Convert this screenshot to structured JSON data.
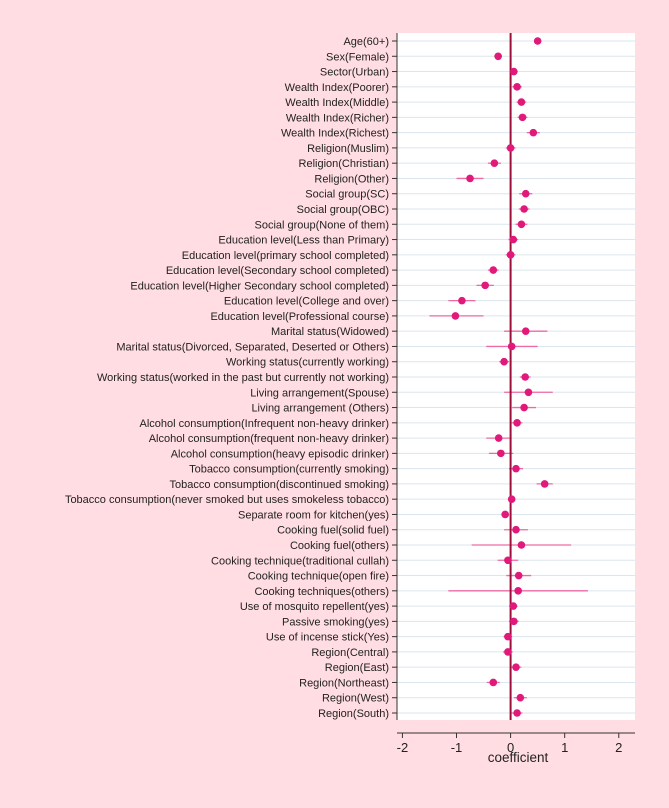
{
  "chart_data": {
    "type": "forest",
    "xlabel": "coefficient",
    "xlim": [
      -2.1,
      2.3
    ],
    "xticks": [
      -2,
      -1,
      0,
      1,
      2
    ],
    "xtick_labels": [
      "-2",
      "-1",
      "0",
      "1",
      "2"
    ],
    "reference_line": 0,
    "grid": "horizontal",
    "colors": {
      "page_background": "#ffdde2",
      "plot_background": "#ffffff",
      "gridline": "#dbe6ee",
      "point": "#e0197a",
      "ci_line": "#ee6aa5",
      "reference_line": "#9b0f3a"
    },
    "rows": [
      {
        "label": "Age(60+)",
        "coef": 0.5,
        "lo": 0.44,
        "hi": 0.57
      },
      {
        "label": "Sex(Female)",
        "coef": -0.23,
        "lo": -0.3,
        "hi": -0.16
      },
      {
        "label": "Sector(Urban)",
        "coef": 0.06,
        "lo": -0.01,
        "hi": 0.13
      },
      {
        "label": "Wealth Index(Poorer)",
        "coef": 0.12,
        "lo": 0.03,
        "hi": 0.21
      },
      {
        "label": "Wealth Index(Middle)",
        "coef": 0.2,
        "lo": 0.11,
        "hi": 0.29
      },
      {
        "label": "Wealth Index(Richer)",
        "coef": 0.22,
        "lo": 0.13,
        "hi": 0.31
      },
      {
        "label": "Wealth Index(Richest)",
        "coef": 0.42,
        "lo": 0.3,
        "hi": 0.54
      },
      {
        "label": "Religion(Muslim)",
        "coef": 0.0,
        "lo": -0.09,
        "hi": 0.09
      },
      {
        "label": "Religion(Christian)",
        "coef": -0.3,
        "lo": -0.42,
        "hi": -0.18
      },
      {
        "label": "Religion(Other)",
        "coef": -0.75,
        "lo": -1.0,
        "hi": -0.5
      },
      {
        "label": "Social group(SC)",
        "coef": 0.28,
        "lo": 0.16,
        "hi": 0.4
      },
      {
        "label": "Social group(OBC)",
        "coef": 0.25,
        "lo": 0.15,
        "hi": 0.35
      },
      {
        "label": "Social group(None of them)",
        "coef": 0.2,
        "lo": 0.09,
        "hi": 0.31
      },
      {
        "label": "Education level(Less than Primary)",
        "coef": 0.05,
        "lo": -0.04,
        "hi": 0.14
      },
      {
        "label": "Education level(primary school completed)",
        "coef": 0.0,
        "lo": -0.09,
        "hi": 0.09
      },
      {
        "label": "Education level(Secondary school completed)",
        "coef": -0.32,
        "lo": -0.42,
        "hi": -0.22
      },
      {
        "label": "Education level(Higher Secondary school completed)",
        "coef": -0.47,
        "lo": -0.63,
        "hi": -0.31
      },
      {
        "label": "Education level(College and over)",
        "coef": -0.9,
        "lo": -1.15,
        "hi": -0.65
      },
      {
        "label": "Education level(Professional course)",
        "coef": -1.02,
        "lo": -1.5,
        "hi": -0.5
      },
      {
        "label": "Marital status(Widowed)",
        "coef": 0.28,
        "lo": -0.12,
        "hi": 0.68
      },
      {
        "label": "Marital status(Divorced, Separated, Deserted or Others)",
        "coef": 0.02,
        "lo": -0.45,
        "hi": 0.5
      },
      {
        "label": "Working status(currently working)",
        "coef": -0.12,
        "lo": -0.21,
        "hi": -0.03
      },
      {
        "label": "Working status(worked in the past but currently not working)",
        "coef": 0.27,
        "lo": 0.17,
        "hi": 0.37
      },
      {
        "label": "Living arrangement(Spouse)",
        "coef": 0.33,
        "lo": -0.12,
        "hi": 0.78
      },
      {
        "label": "Living arrangement (Others)",
        "coef": 0.25,
        "lo": 0.03,
        "hi": 0.47
      },
      {
        "label": "Alcohol consumption(Infrequent non-heavy drinker)",
        "coef": 0.12,
        "lo": 0.02,
        "hi": 0.22
      },
      {
        "label": "Alcohol consumption(frequent non-heavy drinker)",
        "coef": -0.22,
        "lo": -0.45,
        "hi": 0.01
      },
      {
        "label": "Alcohol consumption(heavy episodic drinker)",
        "coef": -0.18,
        "lo": -0.4,
        "hi": 0.05
      },
      {
        "label": "Tobacco consumption(currently smoking)",
        "coef": 0.1,
        "lo": -0.03,
        "hi": 0.23
      },
      {
        "label": "Tobacco consumption(discontinued smoking)",
        "coef": 0.63,
        "lo": 0.48,
        "hi": 0.78
      },
      {
        "label": "Tobacco consumption(never smoked but uses smokeless tobacco)",
        "coef": 0.02,
        "lo": -0.05,
        "hi": 0.09
      },
      {
        "label": "Separate room for kitchen(yes)",
        "coef": -0.1,
        "lo": -0.17,
        "hi": -0.03
      },
      {
        "label": "Cooking fuel(solid fuel)",
        "coef": 0.1,
        "lo": -0.12,
        "hi": 0.32
      },
      {
        "label": "Cooking fuel(others)",
        "coef": 0.2,
        "lo": -0.72,
        "hi": 1.12
      },
      {
        "label": "Cooking technique(traditional cullah)",
        "coef": -0.05,
        "lo": -0.24,
        "hi": 0.14
      },
      {
        "label": "Cooking technique(open fire)",
        "coef": 0.15,
        "lo": -0.08,
        "hi": 0.38
      },
      {
        "label": "Cooking techniques(others)",
        "coef": 0.14,
        "lo": -1.15,
        "hi": 1.43
      },
      {
        "label": "Use of mosquito repellent(yes)",
        "coef": 0.05,
        "lo": -0.03,
        "hi": 0.13
      },
      {
        "label": "Passive smoking(yes)",
        "coef": 0.06,
        "lo": -0.03,
        "hi": 0.15
      },
      {
        "label": "Use of incense stick(Yes)",
        "coef": -0.05,
        "lo": -0.13,
        "hi": 0.03
      },
      {
        "label": "Region(Central)",
        "coef": -0.05,
        "lo": -0.14,
        "hi": 0.04
      },
      {
        "label": "Region(East)",
        "coef": 0.1,
        "lo": 0.0,
        "hi": 0.2
      },
      {
        "label": "Region(Northeast)",
        "coef": -0.32,
        "lo": -0.44,
        "hi": -0.2
      },
      {
        "label": "Region(West)",
        "coef": 0.18,
        "lo": 0.06,
        "hi": 0.3
      },
      {
        "label": "Region(South)",
        "coef": 0.12,
        "lo": 0.02,
        "hi": 0.22
      }
    ]
  }
}
